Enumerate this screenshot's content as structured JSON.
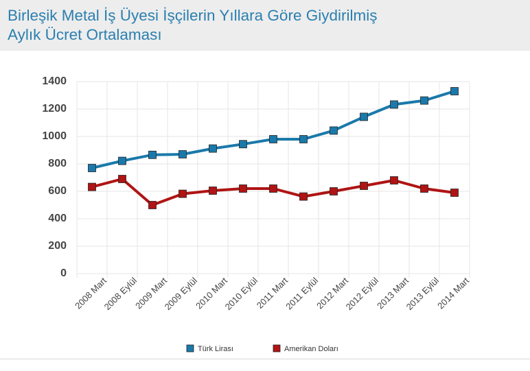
{
  "header": {
    "title_line1": "Birleşik Metal İş Üyesi İşçilerin Yıllara Göre Giydirilmiş",
    "title_line2": "Aylık Ücret Ortalaması"
  },
  "colors": {
    "title": "#2b7fb0",
    "turk_lirasi": "#1a79aa",
    "amerikan_dolari": "#b01414",
    "grid": "#e6e6e6",
    "axis_text": "#444444"
  },
  "chart_data": {
    "type": "line",
    "title": "Birleşik Metal İş Üyesi İşçilerin Yıllara Göre Giydirilmiş Aylık Ücret Ortalaması",
    "xlabel": "",
    "ylabel": "",
    "categories": [
      "2008 Mart",
      "2008 Eylül",
      "2009 Mart",
      "2009 Eylül",
      "2010 Mart",
      "2010 Eylül",
      "2011 Mart",
      "2011 Eylül",
      "2012 Mart",
      "2012 Eylül",
      "2013 Mart",
      "2013 Eylül",
      "2014 Mart"
    ],
    "yticks": [
      "0",
      "200",
      "400",
      "600",
      "800",
      "1000",
      "1200",
      "1400"
    ],
    "ylim": [
      0,
      1400
    ],
    "grid": true,
    "legend_position": "bottom",
    "series": [
      {
        "name": "Türk Lirası",
        "color": "#1a79aa",
        "values": [
          770,
          822,
          866,
          870,
          912,
          944,
          980,
          980,
          1043,
          1143,
          1233,
          1262,
          1330
        ]
      },
      {
        "name": "Amerikan Doları",
        "color": "#b01414",
        "values": [
          632,
          690,
          500,
          582,
          605,
          620,
          620,
          562,
          600,
          640,
          680,
          620,
          590
        ]
      }
    ]
  }
}
